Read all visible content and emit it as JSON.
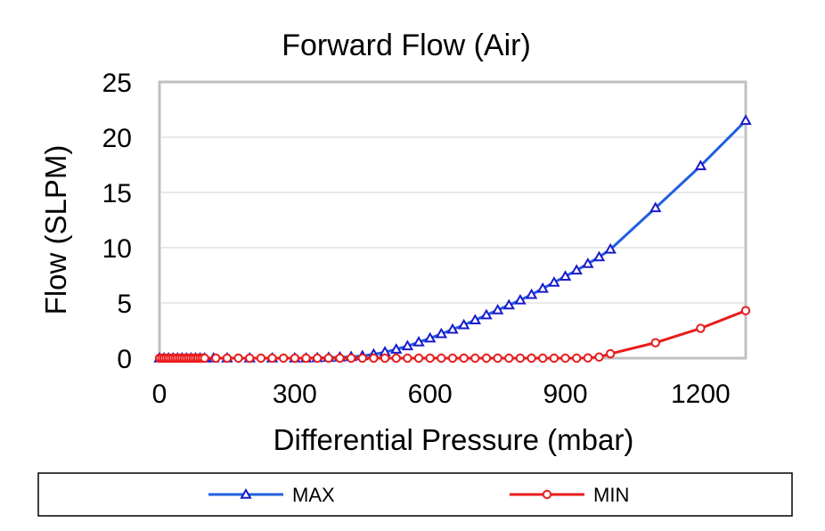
{
  "chart_data": {
    "type": "line",
    "title": "Forward Flow (Air)",
    "xlabel": "Differential Pressure (mbar)",
    "ylabel": "Flow (SLPM)",
    "xlim": [
      0,
      1300
    ],
    "ylim": [
      0,
      25
    ],
    "xticks": [
      0,
      300,
      600,
      900,
      1200
    ],
    "yticks": [
      0,
      5,
      10,
      15,
      20,
      25
    ],
    "grid": "horizontal",
    "legend_position": "bottom",
    "series": [
      {
        "name": "MAX",
        "color": "#1f5fe0",
        "marker": "triangle",
        "x": [
          0,
          10,
          20,
          30,
          40,
          50,
          60,
          70,
          80,
          90,
          100,
          120,
          150,
          200,
          250,
          300,
          325,
          350,
          375,
          400,
          425,
          450,
          475,
          500,
          525,
          550,
          575,
          600,
          625,
          650,
          675,
          700,
          725,
          750,
          775,
          800,
          825,
          850,
          875,
          900,
          925,
          950,
          975,
          1000,
          1100,
          1200,
          1300
        ],
        "y": [
          0,
          0,
          0,
          0,
          0,
          0,
          0,
          0,
          0,
          0,
          0,
          0,
          0,
          0,
          0,
          0,
          0,
          0.02,
          0.05,
          0.08,
          0.12,
          0.2,
          0.35,
          0.55,
          0.8,
          1.1,
          1.45,
          1.8,
          2.2,
          2.6,
          3.0,
          3.45,
          3.9,
          4.35,
          4.8,
          5.25,
          5.75,
          6.3,
          6.85,
          7.4,
          7.95,
          8.55,
          9.15,
          9.85,
          13.6,
          17.4,
          21.5
        ]
      },
      {
        "name": "MIN",
        "color": "#e81c1c",
        "marker": "circle",
        "x": [
          0,
          5,
          10,
          15,
          20,
          25,
          30,
          35,
          40,
          45,
          50,
          55,
          60,
          65,
          70,
          75,
          80,
          85,
          90,
          95,
          100,
          125,
          150,
          175,
          200,
          225,
          250,
          275,
          300,
          325,
          350,
          375,
          400,
          425,
          450,
          475,
          500,
          525,
          550,
          575,
          600,
          625,
          650,
          675,
          700,
          725,
          750,
          775,
          800,
          825,
          850,
          875,
          900,
          925,
          950,
          975,
          1000,
          1100,
          1200,
          1300
        ],
        "y": [
          0,
          0,
          0,
          0,
          0,
          0,
          0,
          0,
          0,
          0,
          0,
          0,
          0,
          0,
          0,
          0,
          0,
          0,
          0,
          0,
          0,
          0,
          0,
          0,
          0,
          0,
          0,
          0,
          0,
          0,
          0,
          0,
          0,
          0,
          0,
          0,
          0,
          0,
          0,
          0,
          0,
          0,
          0,
          0,
          0,
          0,
          0,
          0,
          0,
          0,
          0,
          0,
          0,
          0,
          0.02,
          0.1,
          0.4,
          1.4,
          2.7,
          4.3
        ]
      }
    ]
  }
}
